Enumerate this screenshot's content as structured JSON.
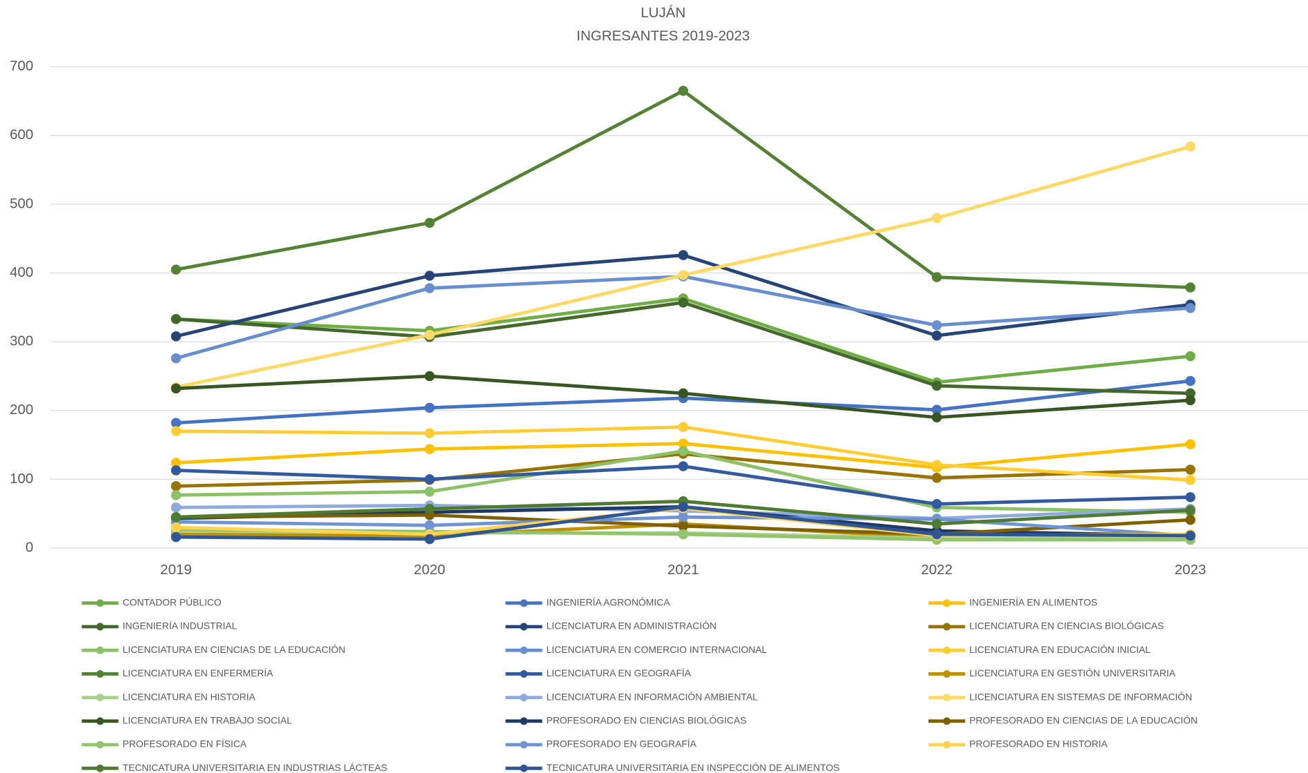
{
  "chart_data": {
    "type": "line",
    "title": "LUJÁN",
    "subtitle": "INGRESANTES 2019-2023",
    "categories": [
      "2019",
      "2020",
      "2021",
      "2022",
      "2023"
    ],
    "ylim": [
      0,
      700
    ],
    "yticks": [
      0,
      100,
      200,
      300,
      400,
      500,
      600,
      700
    ],
    "grid": true,
    "legend": "bottom",
    "series": [
      {
        "name": "CONTADOR PÚBLICO",
        "color": "#70ad47",
        "values": [
          333,
          316,
          363,
          241,
          279
        ]
      },
      {
        "name": "INGENIERÍA AGRONÓMICA",
        "color": "#4472c4",
        "values": [
          182,
          204,
          218,
          201,
          243
        ]
      },
      {
        "name": "INGENIERÍA EN ALIMENTOS",
        "color": "#ffc000",
        "values": [
          124,
          144,
          152,
          117,
          151
        ]
      },
      {
        "name": "INGENIERÍA INDUSTRIAL",
        "color": "#43682b",
        "values": [
          333,
          307,
          357,
          236,
          225
        ]
      },
      {
        "name": "LICENCIATURA EN ADMINISTRACIÓN",
        "color": "#264478",
        "values": [
          308,
          396,
          426,
          309,
          354
        ]
      },
      {
        "name": "LICENCIATURA EN CIENCIAS BIOLÓGICAS",
        "color": "#997300",
        "values": [
          90,
          99,
          137,
          102,
          114
        ]
      },
      {
        "name": "LICENCIATURA EN CIENCIAS DE LA EDUCACIÓN",
        "color": "#8cc168",
        "values": [
          77,
          82,
          141,
          59,
          52
        ]
      },
      {
        "name": "LICENCIATURA EN COMERCIO INTERNACIONAL",
        "color": "#698ed0",
        "values": [
          276,
          378,
          395,
          324,
          349
        ]
      },
      {
        "name": "LICENCIATURA EN EDUCACIÓN INICIAL",
        "color": "#ffcd33",
        "values": [
          170,
          167,
          176,
          121,
          99
        ]
      },
      {
        "name": "LICENCIATURA EN ENFERMERÍA",
        "color": "#548235",
        "values": [
          405,
          473,
          665,
          394,
          379
        ]
      },
      {
        "name": "LICENCIATURA EN GEOGRAFÍA",
        "color": "#335aa1",
        "values": [
          113,
          100,
          119,
          64,
          74
        ]
      },
      {
        "name": "LICENCIATURA EN GESTIÓN UNIVERSITARIA",
        "color": "#bf9000",
        "values": [
          20,
          18,
          35,
          15,
          20
        ]
      },
      {
        "name": "LICENCIATURA EN HISTORIA",
        "color": "#a9d18e",
        "values": [
          25,
          22,
          22,
          14,
          15
        ]
      },
      {
        "name": "LICENCIATURA EN INFORMACIÓN AMBIENTAL",
        "color": "#8faadc",
        "values": [
          59,
          62,
          54,
          43,
          57
        ]
      },
      {
        "name": "LICENCIATURA EN SISTEMAS DE INFORMACIÓN",
        "color": "#ffd966",
        "values": [
          234,
          310,
          397,
          480,
          584
        ]
      },
      {
        "name": "LICENCIATURA EN TRABAJO SOCIAL",
        "color": "#375623",
        "values": [
          232,
          250,
          225,
          190,
          215
        ]
      },
      {
        "name": "PROFESORADO EN CIENCIAS BIOLÓGICAS",
        "color": "#1f3864",
        "values": [
          43,
          52,
          60,
          25,
          18
        ]
      },
      {
        "name": "PROFESORADO EN CIENCIAS DE LA EDUCACIÓN",
        "color": "#7f6000",
        "values": [
          45,
          48,
          32,
          20,
          41
        ]
      },
      {
        "name": "PROFESORADO EN FÍSICA",
        "color": "#92c46d",
        "values": [
          27,
          24,
          20,
          12,
          12
        ]
      },
      {
        "name": "PROFESORADO EN GEOGRAFÍA",
        "color": "#6f93d4",
        "values": [
          38,
          33,
          45,
          42,
          18
        ]
      },
      {
        "name": "PROFESORADO EN HISTORIA",
        "color": "#ffd34d",
        "values": [
          30,
          20,
          58,
          18,
          20
        ]
      },
      {
        "name": "TECNICATURA UNIVERSITARIA EN INDUSTRIAS LÁCTEAS",
        "color": "#4e7a31",
        "values": [
          45,
          57,
          68,
          35,
          55
        ]
      },
      {
        "name": "TECNICATURA UNIVERSITARIA EN INSPECCIÓN DE ALIMENTOS",
        "color": "#2f5597",
        "values": [
          16,
          13,
          60,
          20,
          18
        ]
      }
    ]
  }
}
